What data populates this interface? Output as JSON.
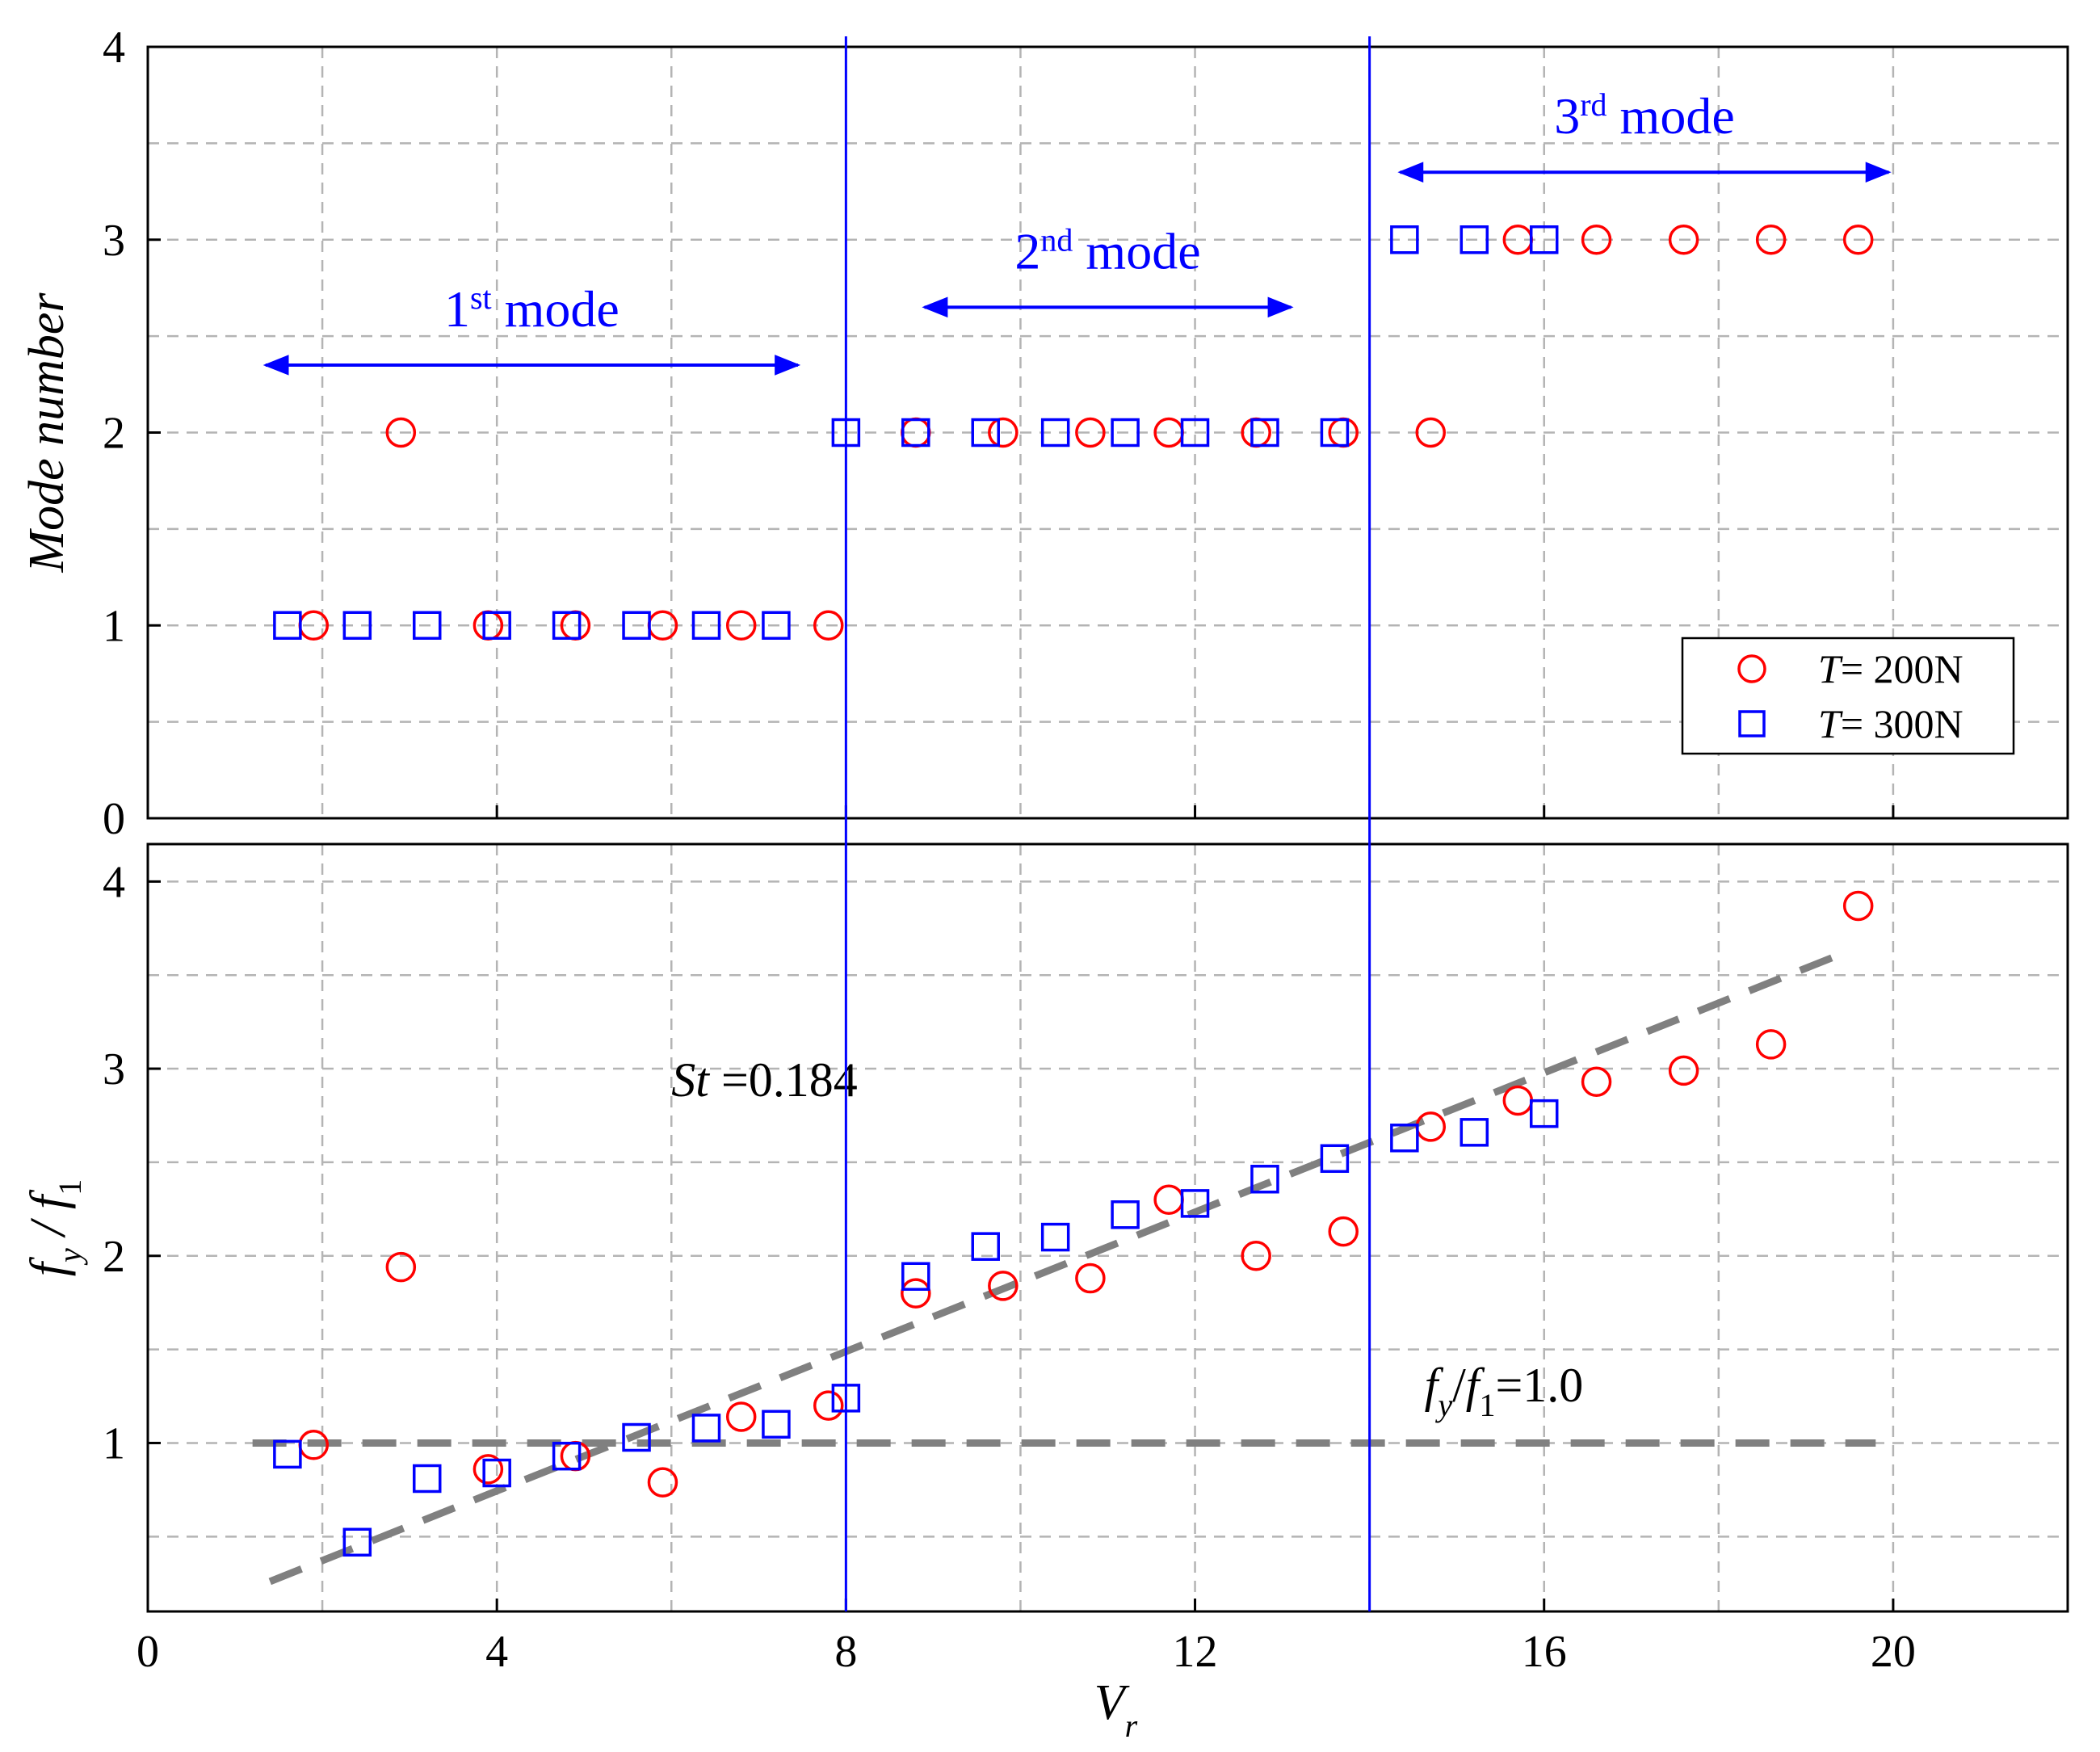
{
  "chart_data": [
    {
      "type": "scatter",
      "panel": "top",
      "ylabel": "Mode number",
      "xlim": [
        0,
        22
      ],
      "ylim": [
        0,
        4
      ],
      "yticks": [
        "0",
        "1",
        "2",
        "3",
        "4"
      ],
      "grid": true,
      "series": [
        {
          "name": "T= 200N",
          "name_parts": {
            "var": "T",
            "rest": "= 200N"
          },
          "marker": "circle",
          "color": "#ff0000",
          "points": [
            [
              1.9,
              1
            ],
            [
              2.9,
              2
            ],
            [
              3.9,
              1
            ],
            [
              4.9,
              1
            ],
            [
              5.9,
              1
            ],
            [
              6.8,
              1
            ],
            [
              7.8,
              1
            ],
            [
              8.8,
              2
            ],
            [
              9.8,
              2
            ],
            [
              10.8,
              2
            ],
            [
              11.7,
              2
            ],
            [
              12.7,
              2
            ],
            [
              13.7,
              2
            ],
            [
              14.7,
              2
            ],
            [
              15.7,
              3
            ],
            [
              16.6,
              3
            ],
            [
              17.6,
              3
            ],
            [
              18.6,
              3
            ],
            [
              19.6,
              3
            ]
          ]
        },
        {
          "name": "T= 300N",
          "name_parts": {
            "var": "T",
            "rest": "= 300N"
          },
          "marker": "square",
          "color": "#0000ff",
          "points": [
            [
              1.6,
              1
            ],
            [
              2.4,
              1
            ],
            [
              3.2,
              1
            ],
            [
              4.0,
              1
            ],
            [
              4.8,
              1
            ],
            [
              5.6,
              1
            ],
            [
              6.4,
              1
            ],
            [
              7.2,
              1
            ],
            [
              8.0,
              2
            ],
            [
              8.8,
              2
            ],
            [
              9.6,
              2
            ],
            [
              10.4,
              2
            ],
            [
              11.2,
              2
            ],
            [
              12.0,
              2
            ],
            [
              12.8,
              2
            ],
            [
              13.6,
              2
            ],
            [
              14.4,
              3
            ],
            [
              15.2,
              3
            ],
            [
              16.0,
              3
            ]
          ]
        }
      ],
      "mode_separators_x": [
        8,
        14
      ],
      "mode_spans": [
        {
          "base": "1",
          "sup": "st",
          "rest": " mode",
          "x_from": 1.35,
          "x_to": 7.45,
          "y": 2.35
        },
        {
          "base": "2",
          "sup": "nd",
          "rest": " mode",
          "x_from": 8.9,
          "x_to": 13.1,
          "y": 2.65
        },
        {
          "base": "3",
          "sup": "rd",
          "rest": " mode",
          "x_from": 14.35,
          "x_to": 19.95,
          "y": 3.35
        }
      ],
      "legend": "bottom-right"
    },
    {
      "type": "scatter",
      "panel": "bottom",
      "xlabel": "Vr",
      "xlabel_parts": {
        "base": "V",
        "sub": "r"
      },
      "ylabel": "fy/f1",
      "xlim": [
        0,
        22
      ],
      "ylim": [
        0.0,
        4.2
      ],
      "xticks": [
        "0",
        "4",
        "8",
        "12",
        "16",
        "20"
      ],
      "yticks": [
        "1",
        "2",
        "3",
        "4"
      ],
      "grid": true,
      "series": [
        {
          "name": "T= 200N",
          "marker": "circle",
          "color": "#ff0000",
          "points": [
            [
              1.9,
              0.99
            ],
            [
              2.9,
              1.94
            ],
            [
              3.9,
              0.86
            ],
            [
              4.9,
              0.93
            ],
            [
              5.9,
              0.79
            ],
            [
              6.8,
              1.14
            ],
            [
              7.8,
              1.2
            ],
            [
              8.8,
              1.8
            ],
            [
              9.8,
              1.84
            ],
            [
              10.8,
              1.88
            ],
            [
              11.7,
              2.3
            ],
            [
              12.7,
              2.0
            ],
            [
              13.7,
              2.13
            ],
            [
              14.7,
              2.69
            ],
            [
              15.7,
              2.83
            ],
            [
              16.6,
              2.93
            ],
            [
              17.6,
              2.99
            ],
            [
              18.6,
              3.13
            ],
            [
              19.6,
              3.87
            ]
          ]
        },
        {
          "name": "T= 300N",
          "marker": "square",
          "color": "#0000ff",
          "points": [
            [
              1.6,
              0.94
            ],
            [
              2.4,
              0.47
            ],
            [
              3.2,
              0.81
            ],
            [
              4.0,
              0.84
            ],
            [
              4.8,
              0.93
            ],
            [
              5.6,
              1.03
            ],
            [
              6.4,
              1.08
            ],
            [
              7.2,
              1.1
            ],
            [
              8.0,
              1.24
            ],
            [
              8.8,
              1.89
            ],
            [
              9.6,
              2.05
            ],
            [
              10.4,
              2.1
            ],
            [
              11.2,
              2.22
            ],
            [
              12.0,
              2.28
            ],
            [
              12.8,
              2.41
            ],
            [
              13.6,
              2.52
            ],
            [
              14.4,
              2.63
            ],
            [
              15.2,
              2.66
            ],
            [
              16.0,
              2.76
            ]
          ]
        }
      ],
      "reference_lines": [
        {
          "label": "St =0.184",
          "label_parts": {
            "var": "St",
            "rest": " =0.184"
          },
          "from": [
            1.4,
            0.26
          ],
          "to": [
            19.5,
            3.63
          ],
          "style": "dashed",
          "color": "#808080"
        },
        {
          "label": "fy/f1=1.0",
          "label_parts": {
            "f": "f",
            "s1": "y",
            "slash": "/",
            "f2": "f",
            "s2": "1",
            "rest": "=1.0"
          },
          "from": [
            1.2,
            1.0
          ],
          "to": [
            19.8,
            1.0
          ],
          "style": "dashed",
          "color": "#808080"
        }
      ],
      "mode_separators_x": [
        8,
        14
      ]
    }
  ]
}
